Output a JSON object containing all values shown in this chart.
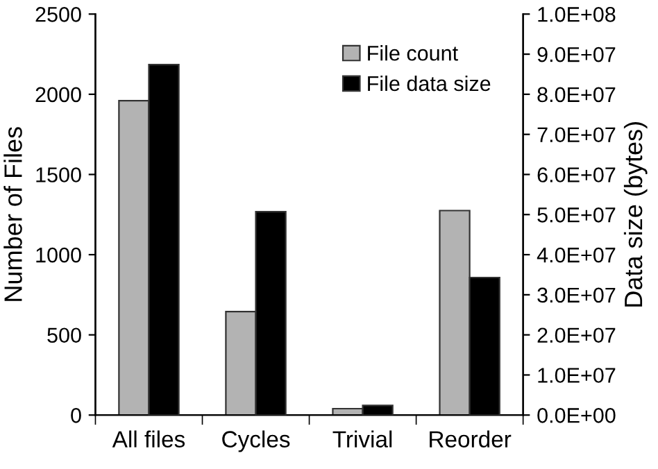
{
  "chart_data": {
    "type": "bar",
    "categories": [
      "All files",
      "Cycles",
      "Trivial",
      "Reorder"
    ],
    "ylabel": "Number of Files",
    "y2label": "Data size (bytes)",
    "ylim": [
      0,
      2500
    ],
    "yticks": [
      0,
      500,
      1000,
      1500,
      2000,
      2500
    ],
    "y2lim": [
      0,
      100000000
    ],
    "y2ticks": [
      {
        "value": 0,
        "label": "0.0E+00"
      },
      {
        "value": 10000000,
        "label": "1.0E+07"
      },
      {
        "value": 20000000,
        "label": "2.0E+07"
      },
      {
        "value": 30000000,
        "label": "3.0E+07"
      },
      {
        "value": 40000000,
        "label": "4.0E+07"
      },
      {
        "value": 50000000,
        "label": "5.0E+07"
      },
      {
        "value": 60000000,
        "label": "6.0E+07"
      },
      {
        "value": 70000000,
        "label": "7.0E+07"
      },
      {
        "value": 80000000,
        "label": "8.0E+07"
      },
      {
        "value": 90000000,
        "label": "9.0E+07"
      },
      {
        "value": 100000000,
        "label": "1.0E+08"
      }
    ],
    "series": [
      {
        "name": "File count",
        "color": "#b3b3b3",
        "values": [
          1960,
          645,
          40,
          1275
        ]
      },
      {
        "name": "File data size",
        "color": "#000000",
        "axis": "y2",
        "values": [
          87400000,
          50700000,
          2400000,
          34300000
        ]
      }
    ],
    "legend": "top right",
    "grid": false
  }
}
